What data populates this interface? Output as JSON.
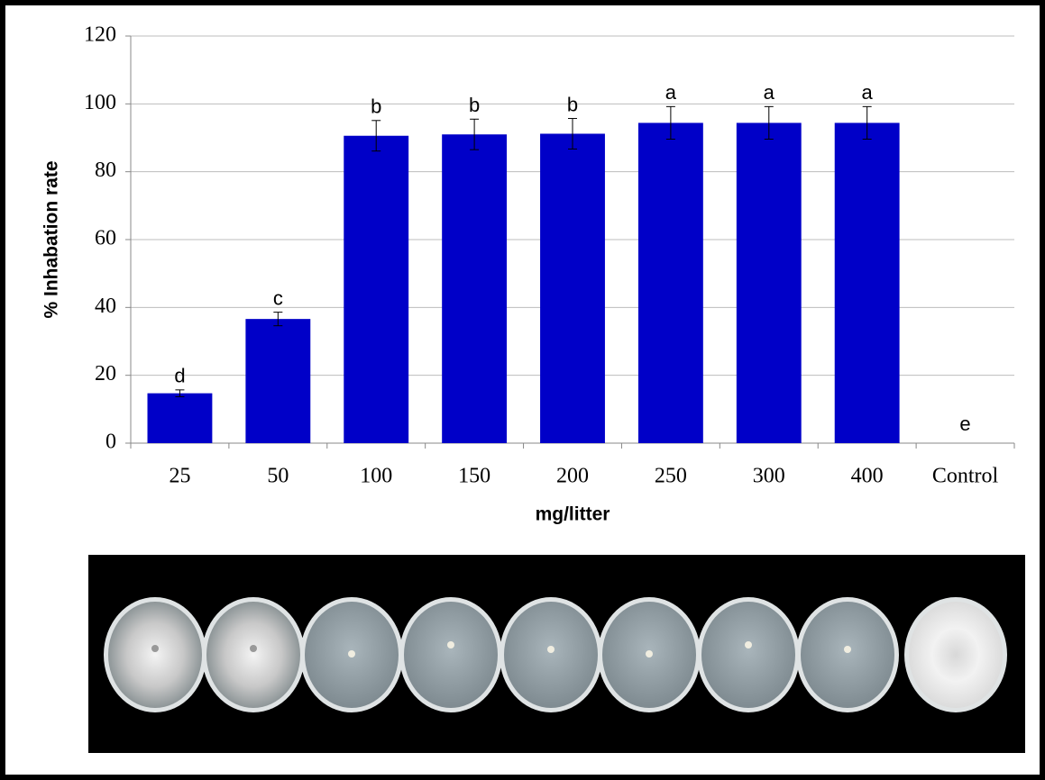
{
  "chart_data": {
    "type": "bar",
    "xlabel": "mg/litter",
    "ylabel": "% Inhabation rate",
    "categories": [
      "25",
      "50",
      "100",
      "150",
      "200",
      "250",
      "300",
      "400",
      "Control"
    ],
    "values": [
      14.7,
      36.6,
      90.6,
      91,
      91.2,
      94.4,
      94.4,
      94.4,
      0
    ],
    "errors": [
      1,
      2,
      4.5,
      4.5,
      4.5,
      4.8,
      4.8,
      4.8,
      0
    ],
    "letters": [
      "d",
      "c",
      "b",
      "b",
      "b",
      "a",
      "a",
      "a",
      "e"
    ],
    "color": "#0000c8",
    "ylim": [
      0,
      120
    ],
    "yticks": [
      0,
      20,
      40,
      60,
      80,
      100,
      120
    ],
    "grid": true
  }
}
